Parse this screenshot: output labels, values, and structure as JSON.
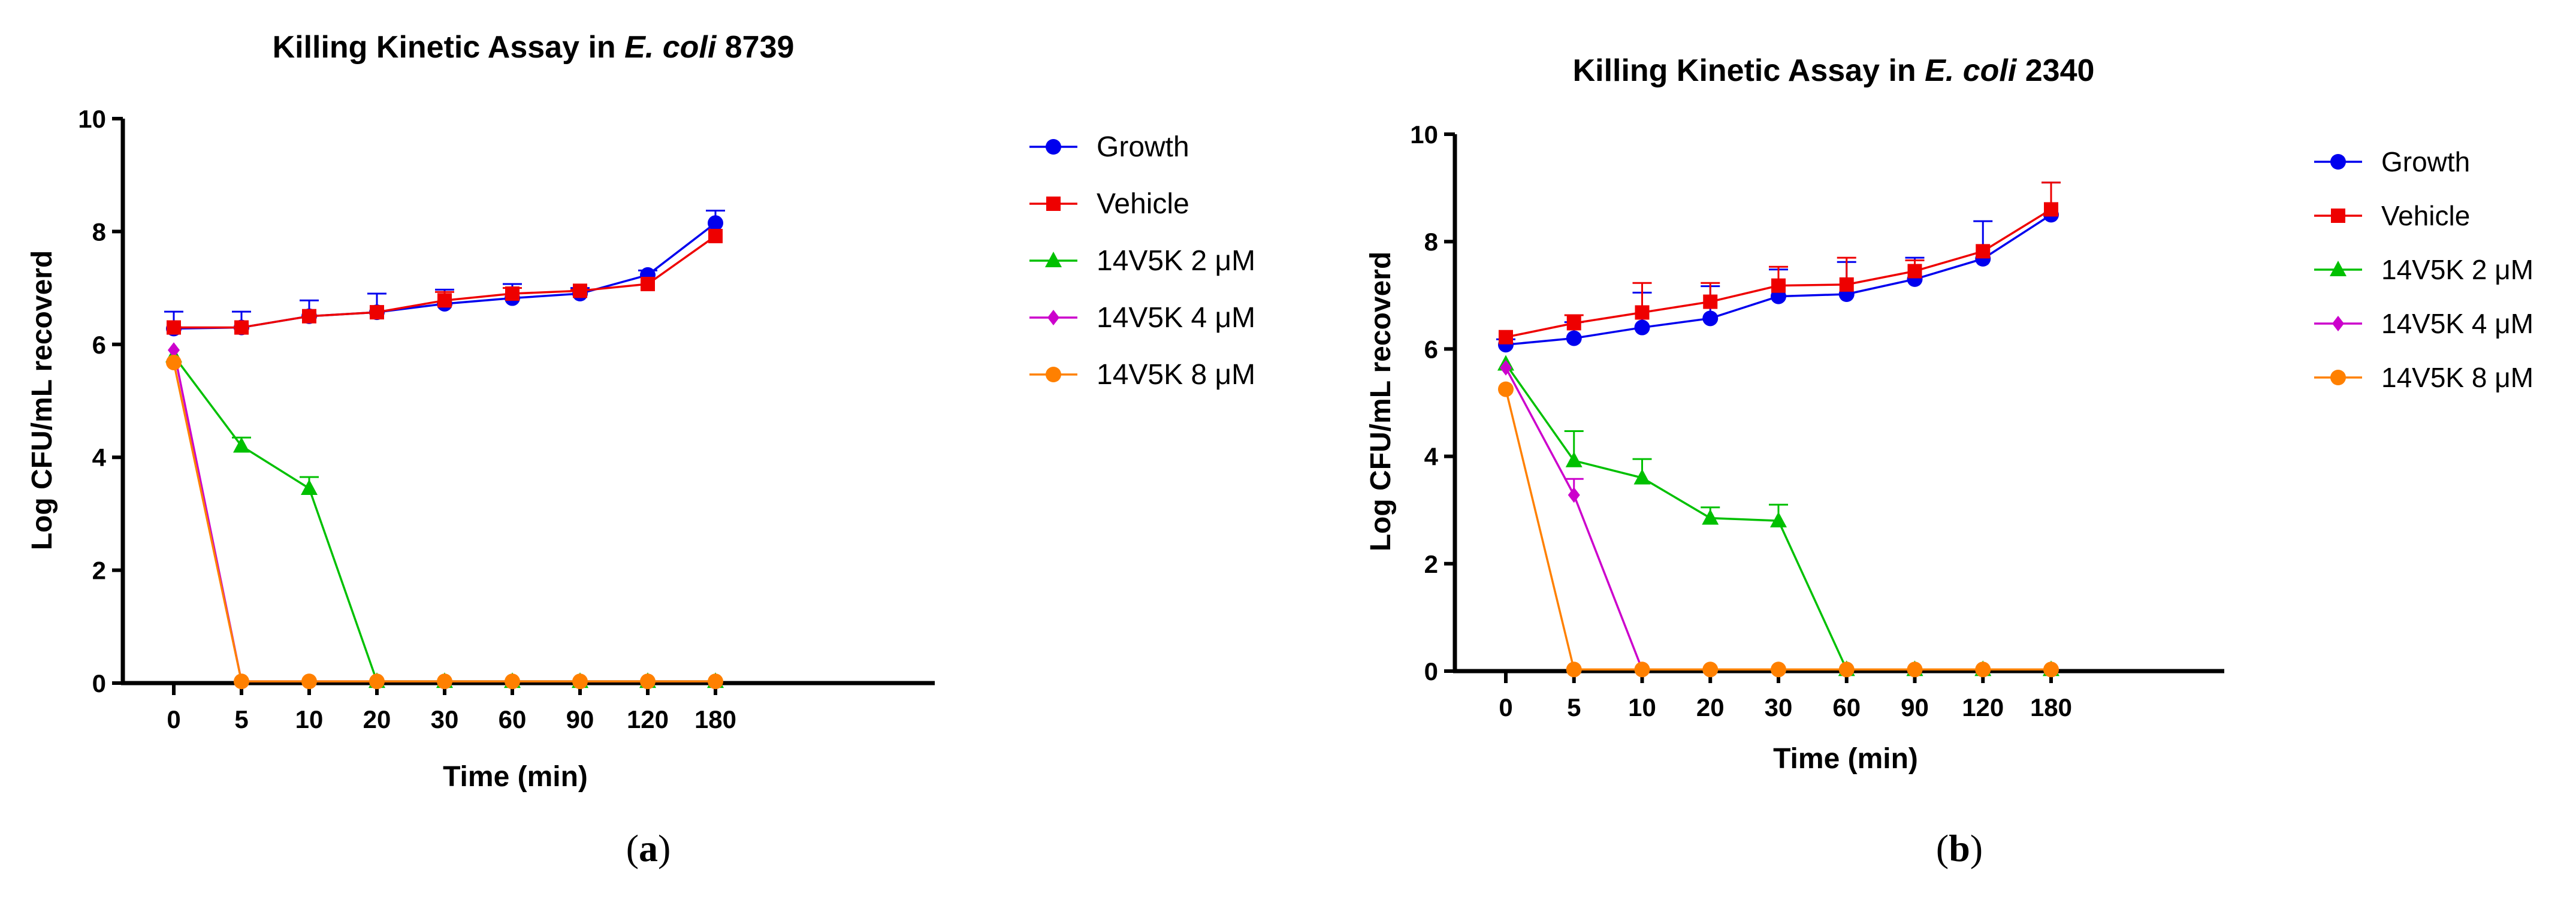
{
  "panel_labels": [
    "(a)",
    "(b)"
  ],
  "chart_data": [
    {
      "type": "line",
      "title_prefix": "Killing Kinetic Assay in ",
      "title_italic": "E. coli",
      "title_suffix": " 8739",
      "xlabel": "Time (min)",
      "ylabel": "Log CFU/mL recoverd",
      "categories": [
        "0",
        "5",
        "10",
        "20",
        "30",
        "60",
        "90",
        "120",
        "180"
      ],
      "ylim": [
        0,
        10
      ],
      "yticks": [
        "0",
        "2",
        "4",
        "6",
        "8",
        "10"
      ],
      "series": [
        {
          "name": "Growth",
          "color": "#0000ee",
          "marker": "circle",
          "values": [
            6.28,
            6.3,
            6.5,
            6.57,
            6.72,
            6.82,
            6.9,
            7.23,
            8.15
          ],
          "errors": [
            0.3,
            0.28,
            0.28,
            0.33,
            0.25,
            0.25,
            0.1,
            0.08,
            0.22
          ]
        },
        {
          "name": "Vehicle",
          "color": "#ee0000",
          "marker": "square",
          "values": [
            6.3,
            6.3,
            6.5,
            6.57,
            6.78,
            6.9,
            6.95,
            7.07,
            7.92
          ],
          "errors": [
            0.0,
            0.0,
            0.0,
            0.0,
            0.15,
            0.1,
            0.02,
            0.0,
            0.0
          ]
        },
        {
          "name": "14V5K 2 μM",
          "color": "#00c000",
          "marker": "triangle",
          "values": [
            5.8,
            4.2,
            3.45,
            0.03,
            0.03,
            0.03,
            0.03,
            0.03,
            0.03
          ],
          "errors": [
            0.0,
            0.15,
            0.2,
            0.0,
            0.0,
            0.0,
            0.0,
            0.0,
            0.0
          ]
        },
        {
          "name": "14V5K 4 μM",
          "color": "#cc00cc",
          "marker": "diamond",
          "values": [
            5.9,
            0.03,
            0.03,
            0.03,
            0.03,
            0.03,
            0.03,
            0.03,
            0.03
          ],
          "errors": [
            0,
            0,
            0,
            0,
            0,
            0,
            0,
            0,
            0
          ]
        },
        {
          "name": "14V5K 8 μM",
          "color": "#ff8000",
          "marker": "circle",
          "values": [
            5.68,
            0.03,
            0.03,
            0.03,
            0.03,
            0.03,
            0.03,
            0.03,
            0.03
          ],
          "errors": [
            0,
            0,
            0,
            0,
            0,
            0,
            0,
            0,
            0
          ]
        }
      ]
    },
    {
      "type": "line",
      "title_prefix": "Killing Kinetic Assay in ",
      "title_italic": "E. coli",
      "title_suffix": " 2340",
      "xlabel": "Time (min)",
      "ylabel": "Log CFU/mL recoverd",
      "categories": [
        "0",
        "5",
        "10",
        "20",
        "30",
        "60",
        "90",
        "120",
        "180"
      ],
      "ylim": [
        0,
        10
      ],
      "yticks": [
        "0",
        "2",
        "4",
        "6",
        "8",
        "10"
      ],
      "series": [
        {
          "name": "Growth",
          "color": "#0000ee",
          "marker": "circle",
          "values": [
            6.08,
            6.2,
            6.4,
            6.57,
            6.98,
            7.02,
            7.3,
            7.68,
            8.5
          ],
          "errors": [
            0.1,
            0.3,
            0.65,
            0.6,
            0.5,
            0.6,
            0.4,
            0.7,
            0.6
          ]
        },
        {
          "name": "Vehicle",
          "color": "#ee0000",
          "marker": "square",
          "values": [
            6.22,
            6.48,
            6.68,
            6.88,
            7.18,
            7.2,
            7.45,
            7.82,
            8.6
          ],
          "errors": [
            0.0,
            0.15,
            0.55,
            0.35,
            0.35,
            0.5,
            0.2,
            0.0,
            0.5
          ]
        },
        {
          "name": "14V5K 2 μM",
          "color": "#00c000",
          "marker": "triangle",
          "values": [
            5.72,
            3.92,
            3.6,
            2.85,
            2.8,
            0.03,
            0.03,
            0.03,
            0.03
          ],
          "errors": [
            0.0,
            0.55,
            0.35,
            0.2,
            0.3,
            0.0,
            0.0,
            0.0,
            0.0
          ]
        },
        {
          "name": "14V5K 4 μM",
          "color": "#cc00cc",
          "marker": "diamond",
          "values": [
            5.65,
            3.28,
            0.03,
            0.03,
            0.03,
            0.03,
            0.03,
            0.03,
            0.03
          ],
          "errors": [
            0.0,
            0.3,
            0,
            0,
            0,
            0,
            0,
            0,
            0
          ]
        },
        {
          "name": "14V5K 8 μM",
          "color": "#ff8000",
          "marker": "circle",
          "values": [
            5.25,
            0.03,
            0.03,
            0.03,
            0.03,
            0.03,
            0.03,
            0.03,
            0.03
          ],
          "errors": [
            0,
            0,
            0,
            0,
            0,
            0,
            0,
            0,
            0
          ]
        }
      ]
    }
  ]
}
